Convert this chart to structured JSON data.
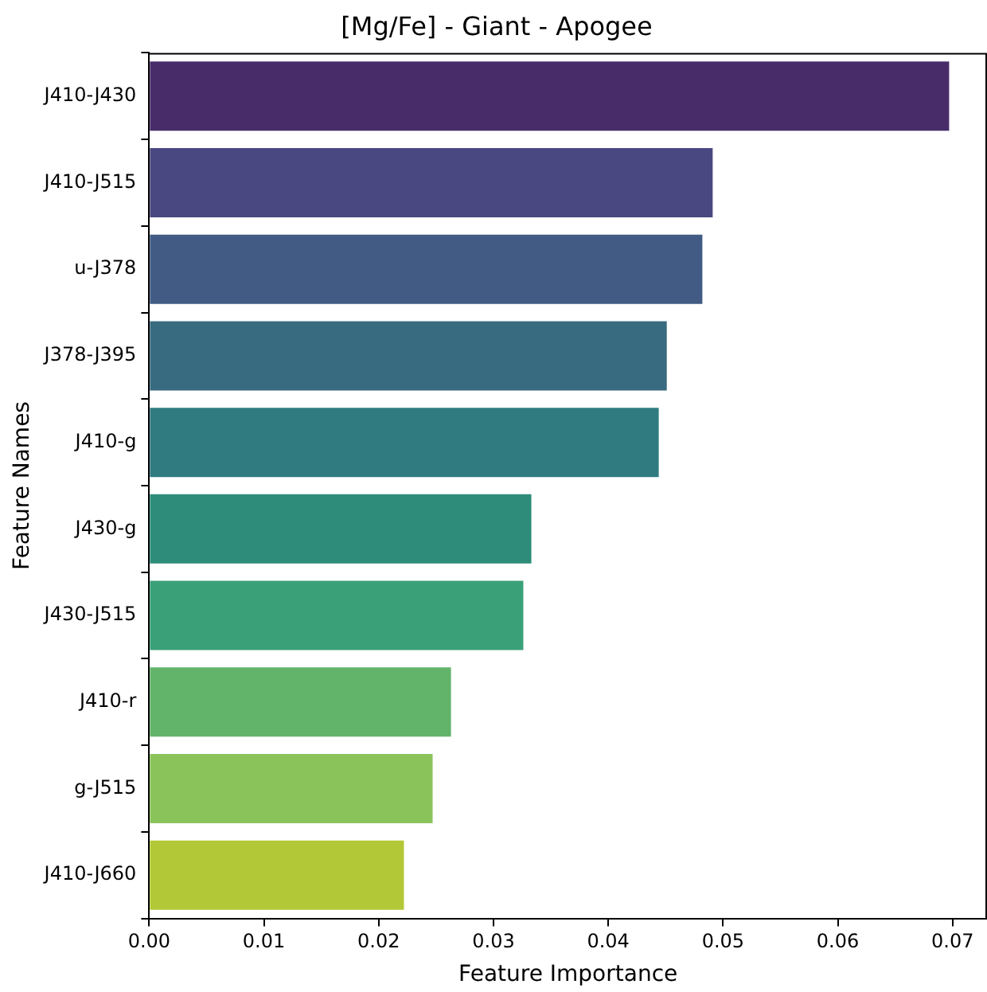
{
  "chart_data": {
    "type": "bar",
    "orientation": "horizontal",
    "title": "[Mg/Fe] - Giant - Apogee",
    "xlabel": "Feature Importance",
    "ylabel": "Feature Names",
    "categories": [
      "J410-J430",
      "J410-J515",
      "u-J378",
      "J378-J395",
      "J410-g",
      "J430-g",
      "J430-J515",
      "J410-r",
      "g-J515",
      "J410-J660"
    ],
    "values": [
      0.0697,
      0.0491,
      0.0482,
      0.0451,
      0.0444,
      0.0333,
      0.0326,
      0.0263,
      0.0247,
      0.0222
    ],
    "colors": [
      "#482c6a",
      "#4a4880",
      "#415b84",
      "#386b80",
      "#2f7b80",
      "#2e8d7a",
      "#3aa078",
      "#62b46a",
      "#8bc35b",
      "#b3c836"
    ],
    "xlim": [
      0,
      0.073
    ],
    "xticks": [
      {
        "value": 0,
        "label": "0.00"
      },
      {
        "value": 0.01,
        "label": "0.01"
      },
      {
        "value": 0.02,
        "label": "0.02"
      },
      {
        "value": 0.03,
        "label": "0.03"
      },
      {
        "value": 0.04,
        "label": "0.04"
      },
      {
        "value": 0.05,
        "label": "0.05"
      },
      {
        "value": 0.06,
        "label": "0.06"
      },
      {
        "value": 0.07,
        "label": "0.07"
      }
    ],
    "grid": false,
    "legend": false
  }
}
